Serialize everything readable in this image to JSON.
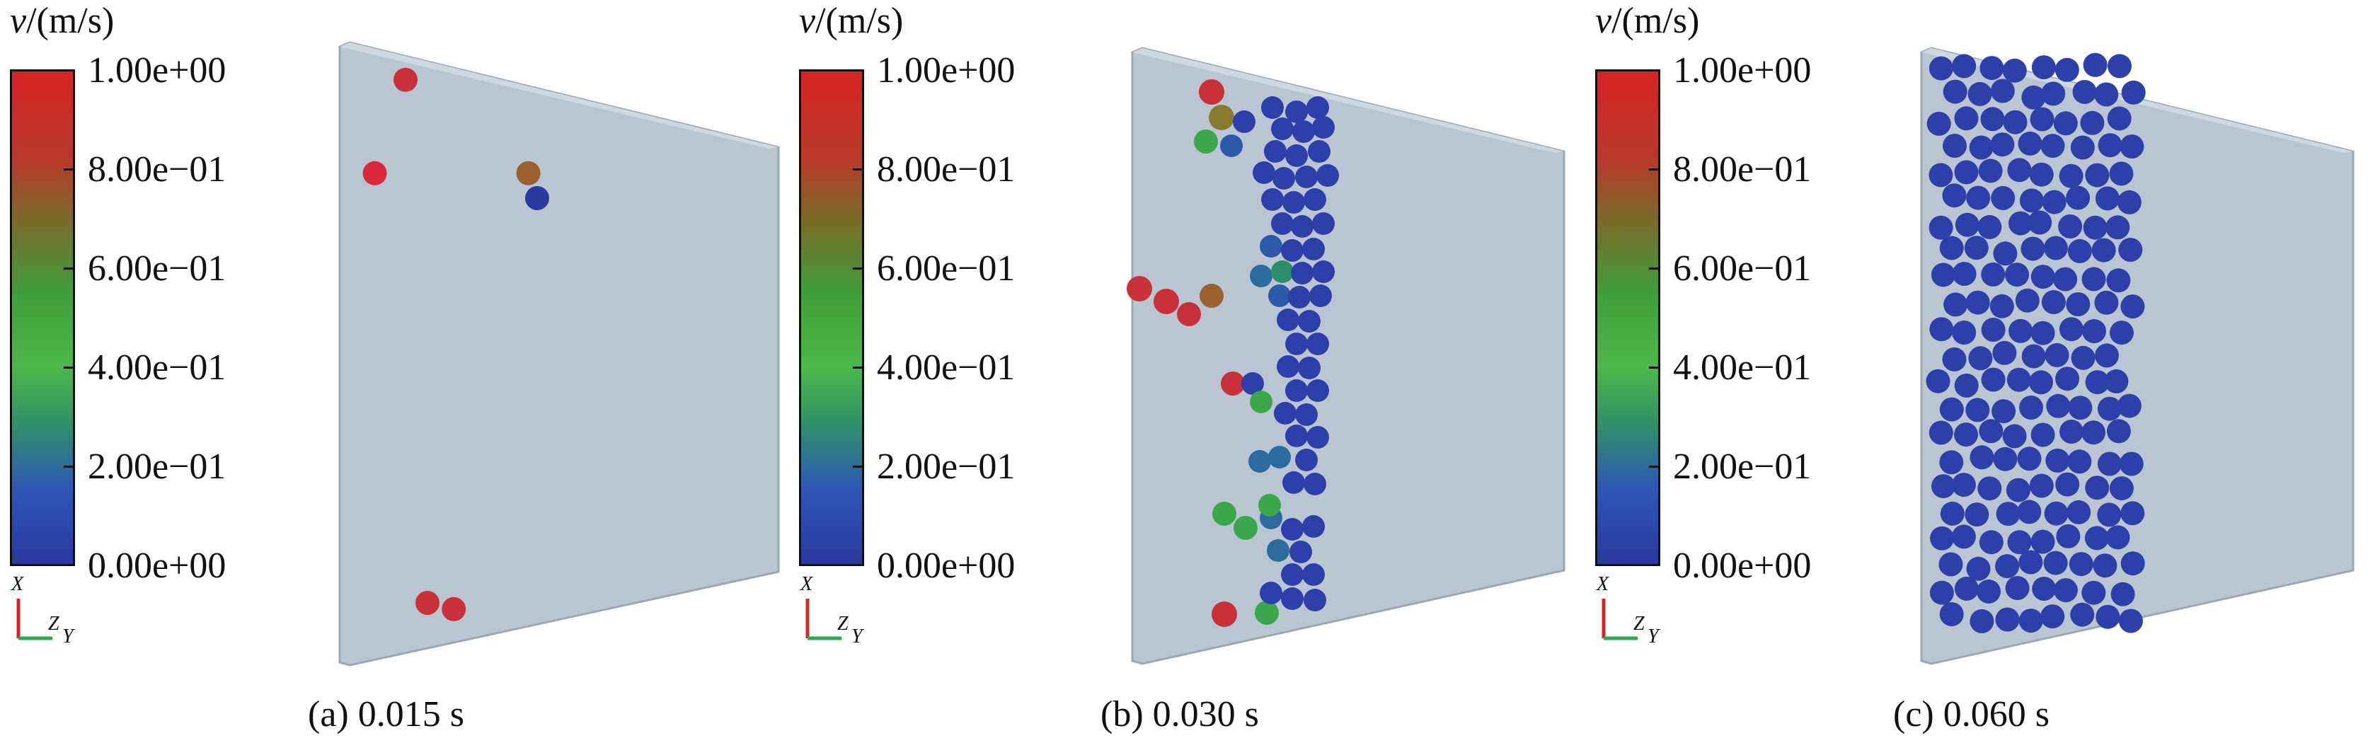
{
  "colorbar": {
    "unit_var": "v",
    "unit_rest": "/(m/s)",
    "ticks": [
      "1.00e+00",
      "8.00e−01",
      "6.00e−01",
      "4.00e−01",
      "2.00e−01",
      "0.00e+00"
    ]
  },
  "axis_triad": {
    "x": "X",
    "z": "Z",
    "y": "Y"
  },
  "panels": [
    {
      "caption": "(a) 0.015 s",
      "particles": [
        {
          "u": 0.15,
          "v": 0.06,
          "c": "#c8303a"
        },
        {
          "u": 0.08,
          "v": 0.21,
          "c": "#d8283a"
        },
        {
          "u": 0.43,
          "v": 0.21,
          "c": "#9a6030"
        },
        {
          "u": 0.45,
          "v": 0.25,
          "c": "#2a3a9e"
        },
        {
          "u": 0.2,
          "v": 0.9,
          "c": "#c8303a"
        },
        {
          "u": 0.26,
          "v": 0.91,
          "c": "#c8303a"
        }
      ]
    },
    {
      "caption": "(b) 0.030 s",
      "particles": []
    },
    {
      "caption": "(c) 0.060 s",
      "particles": []
    }
  ]
}
